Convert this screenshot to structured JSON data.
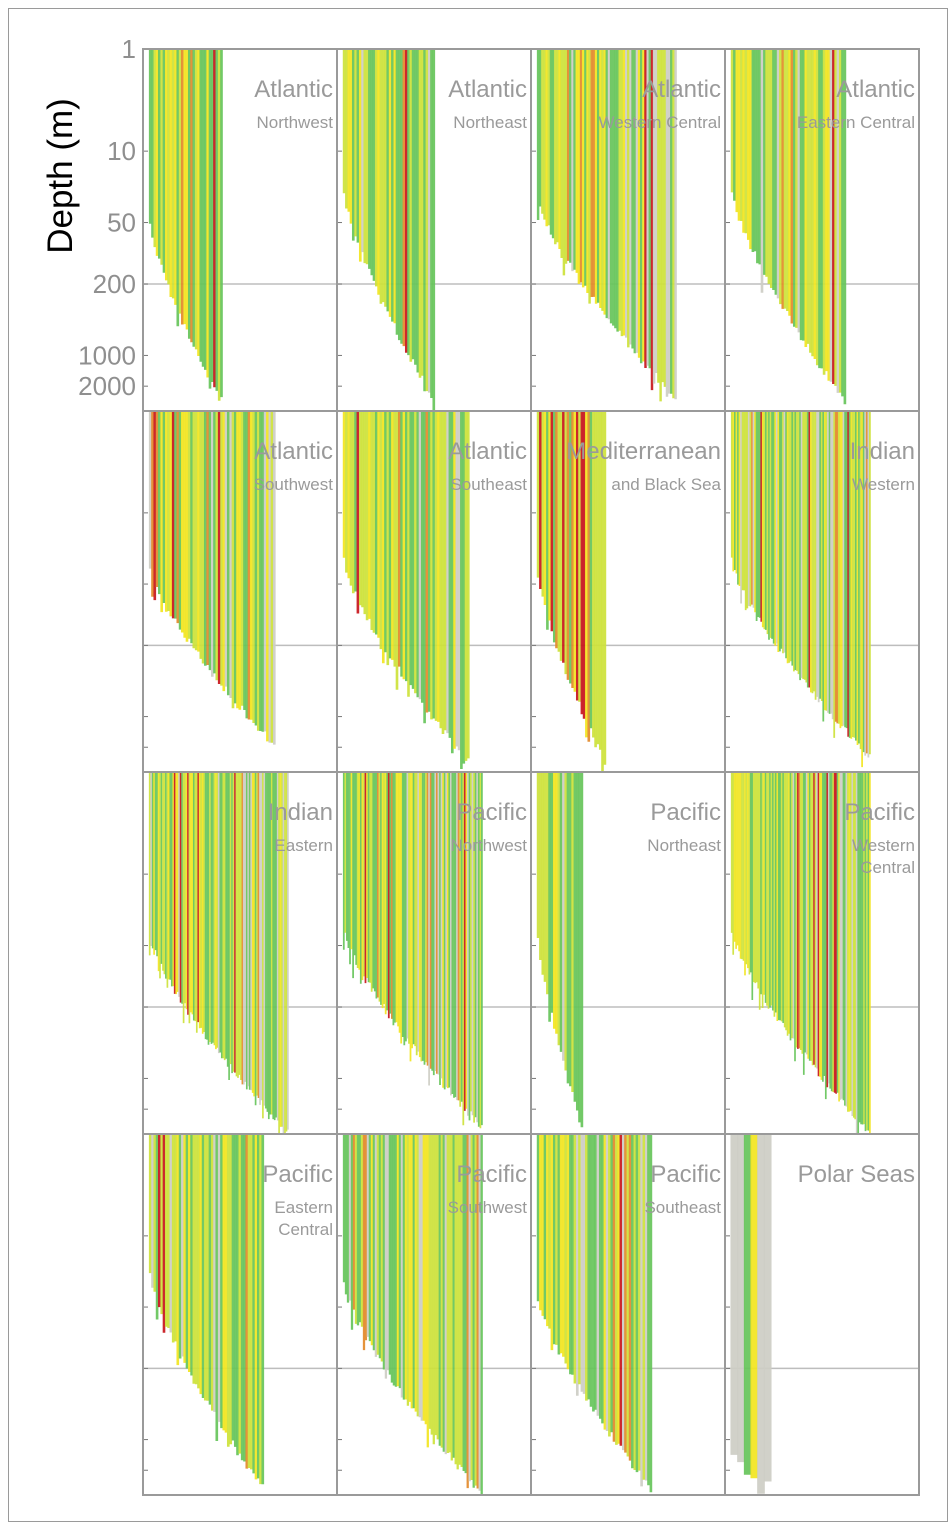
{
  "chart_data": {
    "type": "bar",
    "description_of_marks": "Each panel shows many vertical depth-range bars, sorted by maximum depth",
    "ylabel": "Depth (m)",
    "yscale": "log",
    "y_ticks": [
      1,
      10,
      50,
      200,
      1000,
      2000
    ],
    "y_tick_labels": [
      "1",
      "10",
      "50",
      "200",
      "1000",
      "2000"
    ],
    "ylim": [
      1,
      3500
    ],
    "reference_line_depth": 200,
    "colors": {
      "yellow": "#f2e51f",
      "yellow_green": "#cde23a",
      "green": "#66c45a",
      "orange": "#e38a2a",
      "red": "#c8151b",
      "grey": "#cdcdc4",
      "panel_border": "#9a9a9a",
      "reference_line": "#bdbdbd"
    },
    "panels": [
      {
        "title": "Atlantic",
        "subtitle": [
          "Northwest"
        ],
        "bars": 32,
        "max_depths": [
          50,
          2800
        ],
        "red_share": 0.02,
        "grey_share": 0.1
      },
      {
        "title": "Atlantic",
        "subtitle": [
          "Northeast"
        ],
        "bars": 40,
        "max_depths": [
          25,
          2700
        ],
        "red_share": 0.05,
        "grey_share": 0.08
      },
      {
        "title": "Atlantic",
        "subtitle": [
          "Western Central"
        ],
        "bars": 65,
        "max_depths": [
          30,
          2600
        ],
        "red_share": 0.04,
        "grey_share": 0.28
      },
      {
        "title": "Atlantic",
        "subtitle": [
          "Eastern Central"
        ],
        "bars": 50,
        "max_depths": [
          25,
          2800
        ],
        "red_share": 0.06,
        "grey_share": 0.08
      },
      {
        "title": "Atlantic",
        "subtitle": [
          "Southwest"
        ],
        "bars": 55,
        "max_depths": [
          35,
          1900
        ],
        "red_share": 0.04,
        "grey_share": 0.18
      },
      {
        "title": "Atlantic",
        "subtitle": [
          "Southeast"
        ],
        "bars": 55,
        "max_depths": [
          30,
          2800
        ],
        "red_share": 0.05,
        "grey_share": 0.08
      },
      {
        "title": "Mediterranean",
        "subtitle": [
          "and Black Sea"
        ],
        "bars": 30,
        "max_depths": [
          40,
          2800
        ],
        "red_share": 0.14,
        "grey_share": 0.02
      },
      {
        "title": "Indian",
        "subtitle": [
          "Western"
        ],
        "bars": 90,
        "max_depths": [
          30,
          2500
        ],
        "red_share": 0.04,
        "grey_share": 0.22
      },
      {
        "title": "Indian",
        "subtitle": [
          "Eastern"
        ],
        "bars": 95,
        "max_depths": [
          40,
          3400
        ],
        "red_share": 0.04,
        "grey_share": 0.2
      },
      {
        "title": "Pacific",
        "subtitle": [
          "Northwest"
        ],
        "bars": 90,
        "max_depths": [
          35,
          3000
        ],
        "red_share": 0.03,
        "grey_share": 0.22
      },
      {
        "title": "Pacific",
        "subtitle": [
          "Northeast"
        ],
        "bars": 20,
        "max_depths": [
          40,
          3000
        ],
        "red_share": 0.0,
        "grey_share": 0.15
      },
      {
        "title": "Pacific",
        "subtitle": [
          "Western",
          "Central"
        ],
        "bars": 95,
        "max_depths": [
          35,
          3400
        ],
        "red_share": 0.04,
        "grey_share": 0.22
      },
      {
        "title": "Pacific",
        "subtitle": [
          "Eastern",
          "Central"
        ],
        "bars": 50,
        "max_depths": [
          25,
          3000
        ],
        "red_share": 0.01,
        "grey_share": 0.15
      },
      {
        "title": "Pacific",
        "subtitle": [
          "Southwest"
        ],
        "bars": 70,
        "max_depths": [
          30,
          3400
        ],
        "red_share": 0.02,
        "grey_share": 0.25
      },
      {
        "title": "Pacific",
        "subtitle": [
          "Southeast"
        ],
        "bars": 50,
        "max_depths": [
          40,
          3000
        ],
        "red_share": 0.02,
        "grey_share": 0.25
      },
      {
        "title": "Polar Seas",
        "subtitle": [],
        "bars": 6,
        "max_depths": [
          1500,
          2800
        ],
        "red_share": 0.0,
        "grey_share": 0.7
      }
    ]
  }
}
